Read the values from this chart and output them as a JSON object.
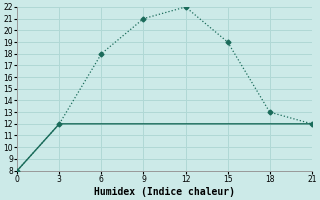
{
  "xlabel": "Humidex (Indice chaleur)",
  "x": [
    0,
    3,
    6,
    9,
    12,
    15,
    18,
    21
  ],
  "y_curve": [
    8,
    12,
    18,
    21,
    22,
    19,
    13,
    12
  ],
  "y_flat": [
    8,
    12,
    12,
    12,
    12,
    12,
    12,
    12
  ],
  "line_color": "#1a6b5a",
  "bg_color": "#cceae8",
  "grid_color": "#b0d8d5",
  "ylim": [
    8,
    22
  ],
  "xlim": [
    0,
    21
  ],
  "yticks": [
    8,
    9,
    10,
    11,
    12,
    13,
    14,
    15,
    16,
    17,
    18,
    19,
    20,
    21,
    22
  ],
  "xticks": [
    0,
    3,
    6,
    9,
    12,
    15,
    18,
    21
  ],
  "tick_fontsize": 5.5,
  "xlabel_fontsize": 7,
  "marker": "D",
  "marker_size": 2.5
}
